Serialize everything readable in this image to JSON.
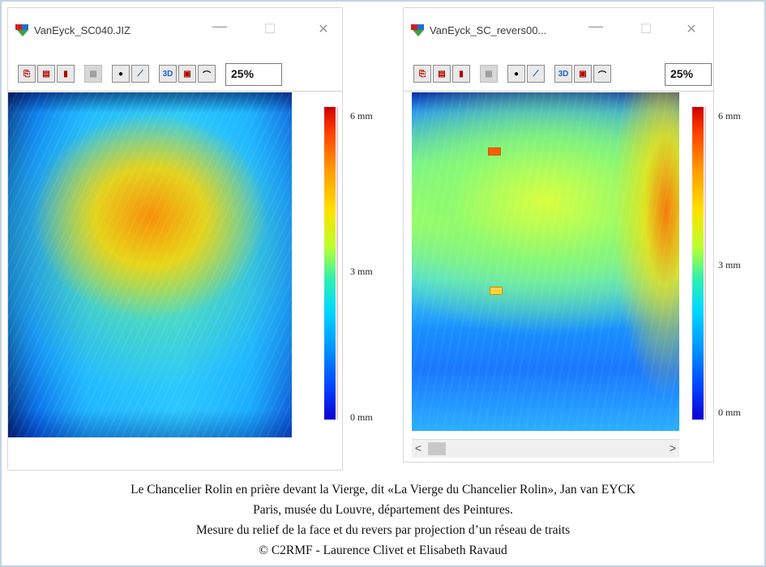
{
  "window_left": {
    "title": "VanEyck_SC040.JIZ",
    "zoom": "25%",
    "scale": {
      "top": "6 mm",
      "mid": "3 mm",
      "bottom": "0 mm"
    }
  },
  "window_right": {
    "title": "VanEyck_SC_revers00...",
    "zoom": "25%",
    "scale": {
      "top": "6 mm",
      "mid": "3 mm",
      "bottom": "0 mm"
    },
    "scroll_left": "<",
    "scroll_right": ">"
  },
  "window_controls": {
    "minimize": "—",
    "maximize": "☐",
    "close": "✕"
  },
  "toolbar_icons": [
    "copy-icon",
    "paste-icon",
    "bookmark-icon",
    "disabled-icon",
    "palette-icon",
    "graph-icon",
    "3d-icon",
    "print-icon",
    "scan-icon"
  ],
  "caption": {
    "line1": "Le Chancelier Rolin en prière devant la Vierge, dit «La Vierge du Chancelier Rolin»,  Jan van EYCK",
    "line2": "Paris, musée du Louvre, département des Peintures.",
    "line3": "Mesure du relief de la face et du revers par projection d’un réseau de traits",
    "line4": "© C2RMF - Laurence Clivet et Elisabeth Ravaud"
  },
  "colors": {
    "frame_border": "#c4d3e2",
    "scale_high": "#d00000",
    "scale_low": "#1000d0"
  }
}
